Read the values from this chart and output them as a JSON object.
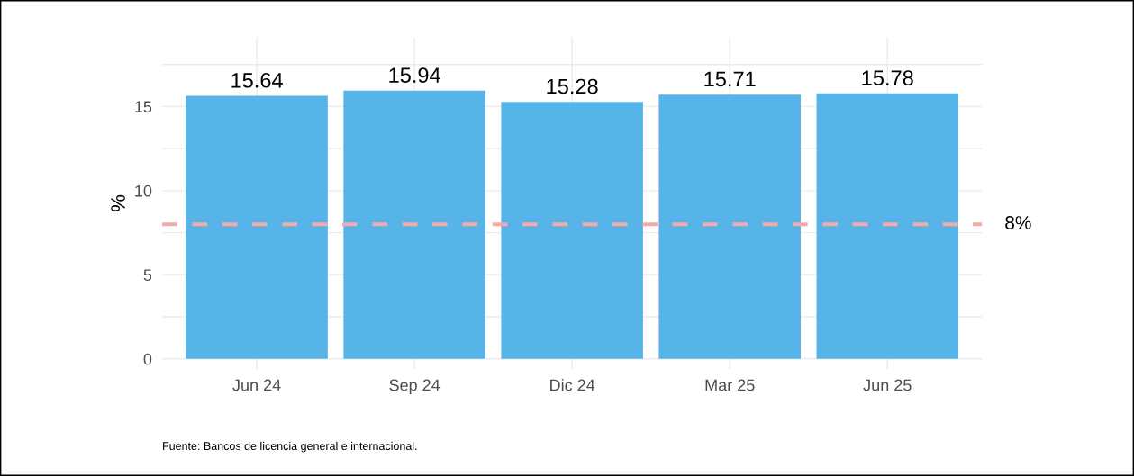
{
  "chart_data": {
    "type": "bar",
    "ylabel": "%",
    "categories": [
      "Jun 24",
      "Sep 24",
      "Dic 24",
      "Mar 25",
      "Jun 25"
    ],
    "values": [
      15.64,
      15.94,
      15.28,
      15.71,
      15.78
    ],
    "color": "#56b4e9",
    "data_labels": true,
    "ylim": [
      -0.6,
      19.1
    ],
    "yticks": [
      0,
      {
        "value": 2.5,
        "label": null
      },
      5,
      {
        "value": 7.5,
        "label": null
      },
      10,
      {
        "value": 12.5,
        "label": null
      },
      15,
      {
        "value": 17.5,
        "label": null
      }
    ],
    "grid": true,
    "ref_lines": [
      {
        "axis": "y",
        "value": 8,
        "label": "8%",
        "color": "#f4aaa8",
        "line_style": "dashed"
      }
    ],
    "annotations": [
      "Fuente: Bancos de licencia general e internacional."
    ]
  }
}
